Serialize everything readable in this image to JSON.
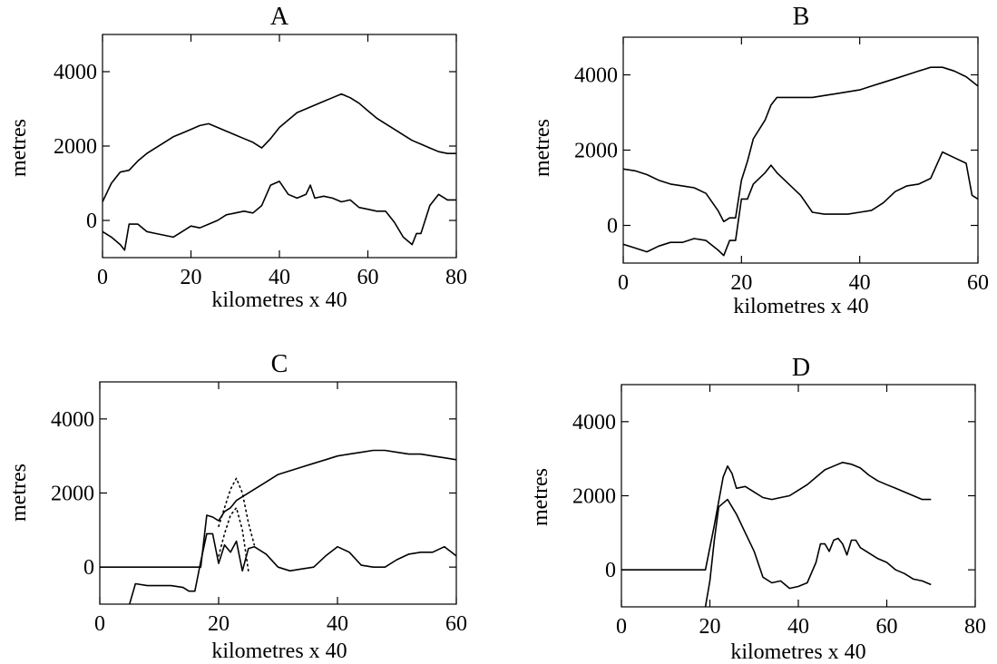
{
  "figure": {
    "background": "#ffffff",
    "ink": "#000000"
  },
  "chart_data": [
    {
      "type": "line",
      "title": "A",
      "xlabel": "kilometres x 40",
      "ylabel": "metres",
      "xlim": [
        0,
        80
      ],
      "ylim": [
        -1000,
        5000
      ],
      "xticks": [
        0,
        20,
        40,
        60,
        80
      ],
      "yticks": [
        0,
        2000,
        4000
      ],
      "grid": false,
      "series": [
        {
          "style": "solid",
          "x": [
            0,
            2,
            4,
            6,
            8,
            10,
            12,
            14,
            16,
            18,
            20,
            22,
            24,
            26,
            28,
            30,
            32,
            34,
            36,
            38,
            40,
            42,
            44,
            46,
            48,
            50,
            52,
            54,
            56,
            58,
            60,
            62,
            64,
            66,
            68,
            70,
            72,
            74,
            76,
            78,
            80
          ],
          "y": [
            500,
            1000,
            1300,
            1350,
            1600,
            1800,
            1950,
            2100,
            2250,
            2350,
            2450,
            2550,
            2600,
            2500,
            2400,
            2300,
            2200,
            2100,
            1950,
            2200,
            2500,
            2700,
            2900,
            3000,
            3100,
            3200,
            3300,
            3400,
            3300,
            3150,
            2950,
            2750,
            2600,
            2450,
            2300,
            2150,
            2050,
            1950,
            1850,
            1800,
            1800
          ]
        },
        {
          "style": "solid",
          "x": [
            0,
            2,
            4,
            5,
            6,
            8,
            10,
            12,
            14,
            16,
            18,
            20,
            22,
            24,
            26,
            28,
            30,
            32,
            34,
            36,
            38,
            40,
            42,
            44,
            46,
            47,
            48,
            50,
            52,
            54,
            56,
            58,
            60,
            62,
            64,
            66,
            68,
            70,
            71,
            72,
            74,
            76,
            78,
            80
          ],
          "y": [
            -300,
            -450,
            -650,
            -800,
            -100,
            -100,
            -300,
            -350,
            -400,
            -450,
            -300,
            -150,
            -200,
            -100,
            0,
            150,
            200,
            250,
            200,
            400,
            950,
            1050,
            700,
            600,
            700,
            950,
            600,
            650,
            600,
            500,
            550,
            350,
            300,
            250,
            250,
            -50,
            -450,
            -650,
            -350,
            -350,
            400,
            700,
            550,
            550
          ]
        }
      ]
    },
    {
      "type": "line",
      "title": "B",
      "xlabel": "kilometres x 40",
      "ylabel": "metres",
      "xlim": [
        0,
        60
      ],
      "ylim": [
        -1000,
        5000
      ],
      "xticks": [
        0,
        20,
        40,
        60
      ],
      "yticks": [
        0,
        2000,
        4000
      ],
      "grid": false,
      "series": [
        {
          "style": "solid",
          "x": [
            0,
            2,
            4,
            6,
            8,
            10,
            12,
            14,
            16,
            17,
            18,
            19,
            20,
            21,
            22,
            24,
            25,
            26,
            28,
            30,
            32,
            34,
            36,
            38,
            40,
            42,
            44,
            46,
            48,
            50,
            52,
            54,
            56,
            58,
            60
          ],
          "y": [
            1500,
            1450,
            1350,
            1200,
            1100,
            1050,
            1000,
            850,
            400,
            100,
            200,
            200,
            1200,
            1700,
            2300,
            2800,
            3200,
            3400,
            3400,
            3400,
            3400,
            3450,
            3500,
            3550,
            3600,
            3700,
            3800,
            3900,
            4000,
            4100,
            4200,
            4200,
            4100,
            3950,
            3700
          ]
        },
        {
          "style": "solid",
          "x": [
            0,
            2,
            4,
            6,
            8,
            10,
            12,
            14,
            16,
            17,
            18,
            19,
            20,
            21,
            22,
            24,
            25,
            26,
            28,
            30,
            32,
            34,
            36,
            38,
            40,
            42,
            44,
            46,
            48,
            50,
            52,
            54,
            56,
            58,
            59,
            60
          ],
          "y": [
            -500,
            -600,
            -700,
            -550,
            -450,
            -450,
            -350,
            -400,
            -650,
            -800,
            -400,
            -400,
            700,
            700,
            1100,
            1400,
            1600,
            1400,
            1100,
            800,
            350,
            300,
            300,
            300,
            350,
            400,
            600,
            900,
            1050,
            1100,
            1250,
            1950,
            1800,
            1650,
            800,
            700
          ]
        }
      ]
    },
    {
      "type": "line",
      "title": "C",
      "xlabel": "kilometres x 40",
      "ylabel": "metres",
      "xlim": [
        0,
        60
      ],
      "ylim": [
        -1000,
        5000
      ],
      "xticks": [
        0,
        20,
        40,
        60
      ],
      "yticks": [
        0,
        2000,
        4000
      ],
      "grid": false,
      "series": [
        {
          "style": "solid",
          "x": [
            0,
            5,
            10,
            17,
            18,
            19,
            20,
            21,
            22,
            23,
            24,
            26,
            28,
            30,
            32,
            34,
            36,
            38,
            40,
            42,
            44,
            46,
            48,
            50,
            52,
            54,
            56,
            58,
            60
          ],
          "y": [
            0,
            0,
            0,
            0,
            1400,
            1350,
            1250,
            1500,
            1600,
            1800,
            1900,
            2100,
            2300,
            2500,
            2600,
            2700,
            2800,
            2900,
            3000,
            3050,
            3100,
            3150,
            3150,
            3100,
            3050,
            3050,
            3000,
            2950,
            2900
          ]
        },
        {
          "style": "solid",
          "x": [
            5,
            6,
            8,
            10,
            12,
            14,
            15,
            16,
            17,
            18,
            19,
            20,
            21,
            22,
            23,
            24,
            25,
            26,
            28,
            30,
            32,
            34,
            36,
            38,
            40,
            42,
            44,
            46,
            48,
            50,
            52,
            54,
            56,
            58,
            60
          ],
          "y": [
            -1000,
            -450,
            -500,
            -500,
            -500,
            -550,
            -650,
            -650,
            150,
            900,
            900,
            100,
            600,
            400,
            700,
            -100,
            500,
            550,
            350,
            0,
            -100,
            -50,
            0,
            300,
            550,
            400,
            50,
            0,
            0,
            200,
            350,
            400,
            400,
            550,
            300
          ]
        },
        {
          "style": "dotted",
          "x": [
            20,
            21,
            22,
            23,
            24,
            25,
            26
          ],
          "y": [
            1100,
            1600,
            2100,
            2400,
            2000,
            1200,
            600
          ]
        },
        {
          "style": "dotted",
          "x": [
            20,
            21,
            22,
            23,
            24,
            25
          ],
          "y": [
            300,
            900,
            1400,
            1600,
            1000,
            -100
          ]
        }
      ]
    },
    {
      "type": "line",
      "title": "D",
      "xlabel": "kilometres x 40",
      "ylabel": "metres",
      "xlim": [
        0,
        80
      ],
      "ylim": [
        -1000,
        5000
      ],
      "xticks": [
        0,
        20,
        40,
        60,
        80
      ],
      "yticks": [
        0,
        2000,
        4000
      ],
      "grid": false,
      "series": [
        {
          "style": "solid",
          "x": [
            0,
            5,
            10,
            15,
            19,
            21,
            23,
            24,
            25,
            26,
            28,
            30,
            32,
            34,
            36,
            38,
            40,
            42,
            44,
            46,
            48,
            50,
            52,
            54,
            56,
            58,
            60,
            62,
            64,
            66,
            68,
            70
          ],
          "y": [
            0,
            0,
            0,
            0,
            0,
            1200,
            2500,
            2800,
            2600,
            2200,
            2250,
            2100,
            1950,
            1900,
            1950,
            2000,
            2150,
            2300,
            2500,
            2700,
            2800,
            2900,
            2850,
            2750,
            2550,
            2400,
            2300,
            2200,
            2100,
            2000,
            1900,
            1900
          ]
        },
        {
          "style": "solid",
          "x": [
            19,
            20,
            21,
            22,
            23,
            24,
            25,
            26,
            28,
            30,
            32,
            34,
            36,
            38,
            40,
            42,
            44,
            45,
            46,
            47,
            48,
            49,
            50,
            51,
            52,
            53,
            54,
            56,
            58,
            60,
            62,
            64,
            66,
            68,
            70
          ],
          "y": [
            -1000,
            -300,
            800,
            1700,
            1800,
            1900,
            1700,
            1500,
            1000,
            500,
            -200,
            -350,
            -300,
            -500,
            -450,
            -350,
            200,
            700,
            700,
            500,
            800,
            850,
            700,
            400,
            800,
            800,
            600,
            450,
            300,
            200,
            0,
            -100,
            -250,
            -300,
            -400
          ]
        }
      ]
    }
  ]
}
